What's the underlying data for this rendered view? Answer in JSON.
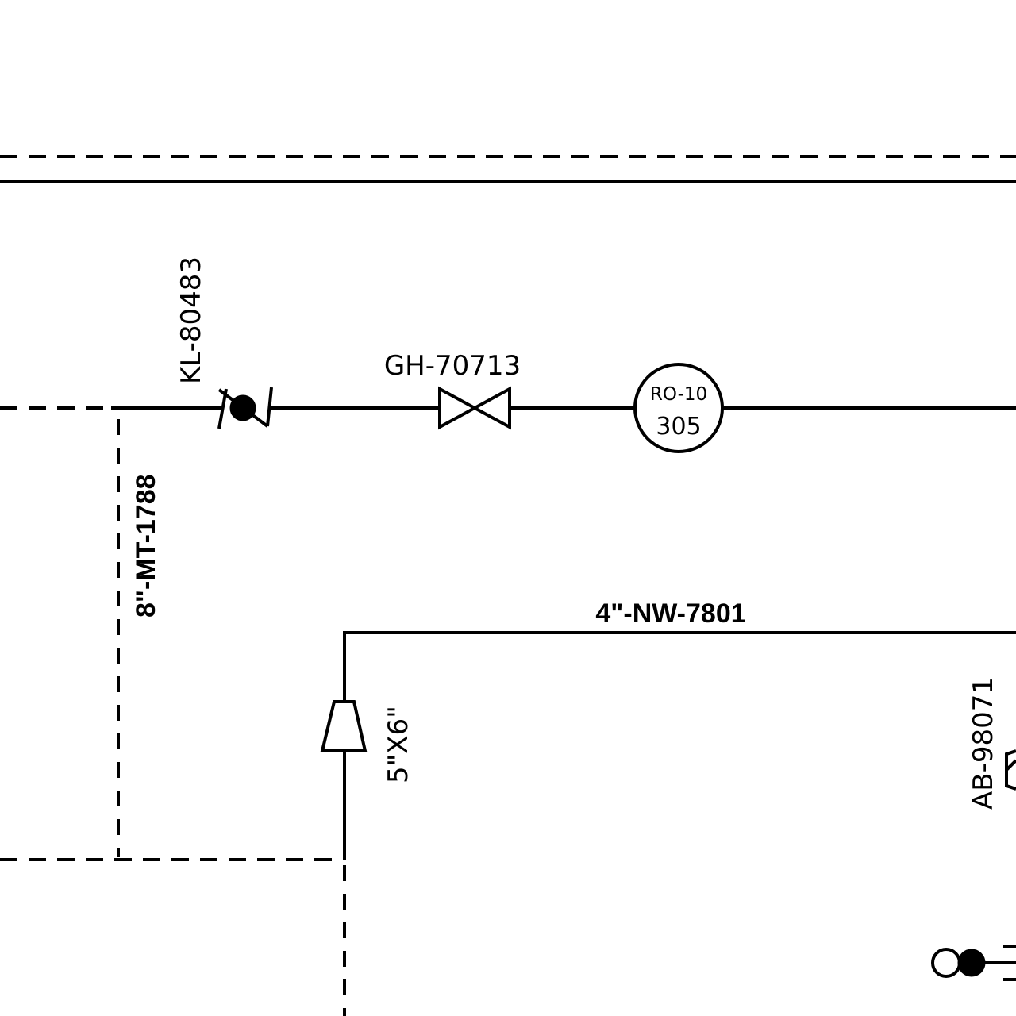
{
  "diagram": {
    "valve_tags": {
      "check_valve": "KL-80483",
      "gate_valve": "GH-70713",
      "right_valve": "AB-98071"
    },
    "line_numbers": {
      "vertical_dashed": "8\"-MT-1788",
      "lower_horizontal": "4\"-NW-7801"
    },
    "reducer_size": "5\"X6\"",
    "instrument": {
      "tag": "RO-10",
      "number": "305"
    }
  }
}
